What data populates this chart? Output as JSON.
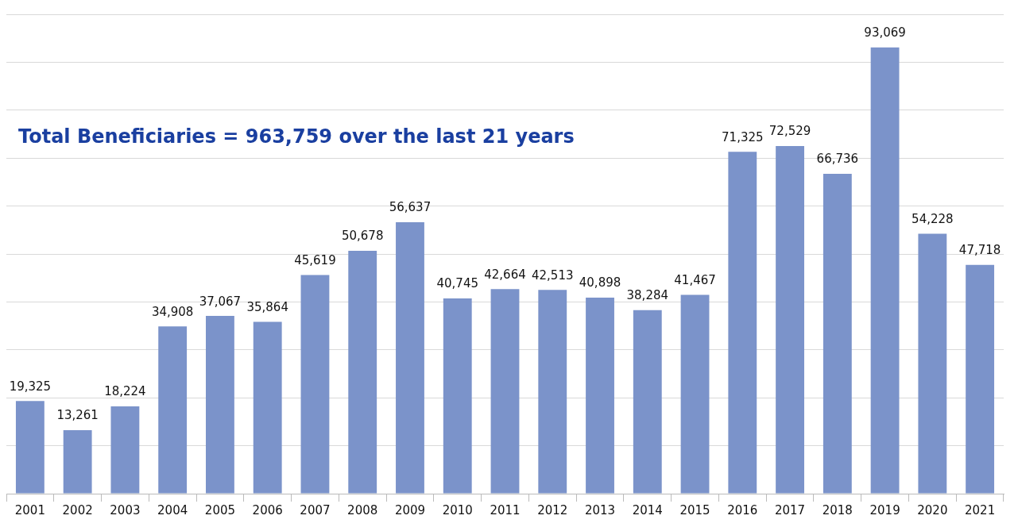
{
  "chart_data": {
    "type": "bar",
    "categories": [
      "2001",
      "2002",
      "2003",
      "2004",
      "2005",
      "2006",
      "2007",
      "2008",
      "2009",
      "2010",
      "2011",
      "2012",
      "2013",
      "2014",
      "2015",
      "2016",
      "2017",
      "2018",
      "2019",
      "2020",
      "2021"
    ],
    "values": [
      19325,
      13261,
      18224,
      34908,
      37067,
      35864,
      45619,
      50678,
      56637,
      40745,
      42664,
      42513,
      40898,
      38284,
      41467,
      71325,
      72529,
      66736,
      93069,
      54228,
      47718
    ],
    "value_labels": [
      "19,325",
      "13,261",
      "18,224",
      "34,908",
      "37,067",
      "35,864",
      "45,619",
      "50,678",
      "56,637",
      "40,745",
      "42,664",
      "42,513",
      "40,898",
      "38,284",
      "41,467",
      "71,325",
      "72,529",
      "66,736",
      "93,069",
      "54,228",
      "47,718"
    ],
    "color": "#7b93ca",
    "grid": "y",
    "tick_labels": "x",
    "legend": false,
    "annotations": [
      "Total Beneficiaries = 963,759 over the last 21 years"
    ]
  }
}
